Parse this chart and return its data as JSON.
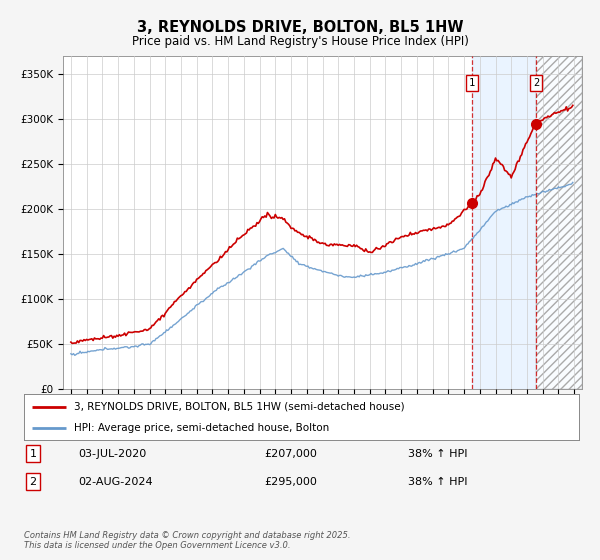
{
  "title": "3, REYNOLDS DRIVE, BOLTON, BL5 1HW",
  "subtitle": "Price paid vs. HM Land Registry's House Price Index (HPI)",
  "ylim": [
    0,
    370000
  ],
  "yticks": [
    0,
    50000,
    100000,
    150000,
    200000,
    250000,
    300000,
    350000
  ],
  "ytick_labels": [
    "£0",
    "£50K",
    "£100K",
    "£150K",
    "£200K",
    "£250K",
    "£300K",
    "£350K"
  ],
  "x_start_year": 1995,
  "x_end_year": 2027,
  "hpi_color": "#6699cc",
  "price_color": "#cc0000",
  "marker1_date": 2020.5,
  "marker1_price": 207000,
  "marker2_date": 2024.58,
  "marker2_price": 295000,
  "marker1_date_str": "03-JUL-2020",
  "marker2_date_str": "02-AUG-2024",
  "marker1_pct": "38% ↑ HPI",
  "marker2_pct": "38% ↑ HPI",
  "legend_line1": "3, REYNOLDS DRIVE, BOLTON, BL5 1HW (semi-detached house)",
  "legend_line2": "HPI: Average price, semi-detached house, Bolton",
  "footer": "Contains HM Land Registry data © Crown copyright and database right 2025.\nThis data is licensed under the Open Government Licence v3.0.",
  "bg_color": "#f5f5f5",
  "plot_bg": "#ffffff",
  "shade_color_blue": "#ddeeff",
  "shade_color_hatch": "#e8e8e8"
}
